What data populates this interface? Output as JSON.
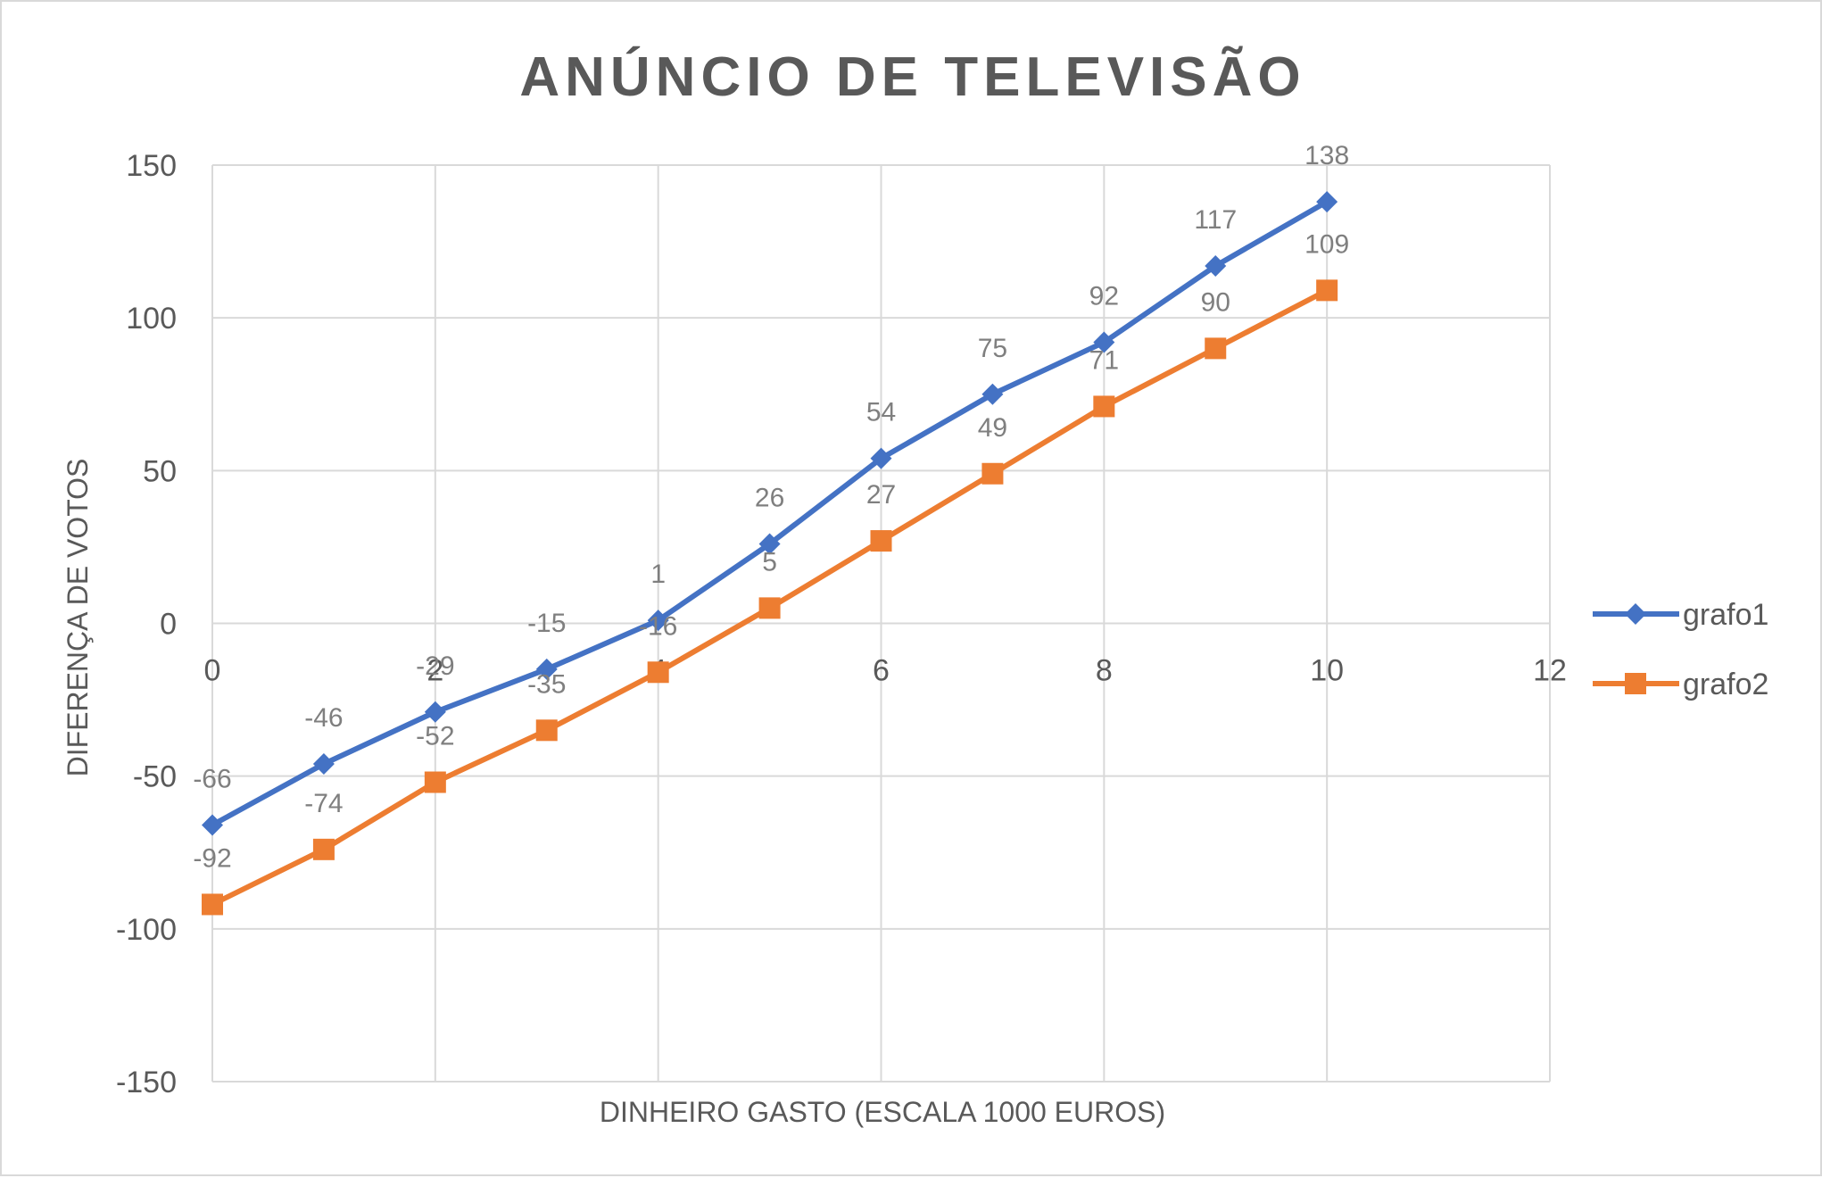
{
  "chart_data": {
    "type": "line",
    "title": "ANÚNCIO DE TELEVISÃO",
    "xlabel": "DINHEIRO GASTO (ESCALA 1000 EUROS)",
    "ylabel": "DIFERENÇA DE VOTOS",
    "xlim": [
      0,
      12
    ],
    "ylim": [
      -150,
      150
    ],
    "x_ticks": [
      "0",
      "2",
      "4",
      "6",
      "8",
      "10",
      "12"
    ],
    "y_ticks": [
      "-150",
      "-100",
      "-50",
      "0",
      "50",
      "100",
      "150"
    ],
    "grid": true,
    "legend_position": "right",
    "x": [
      0,
      1,
      2,
      3,
      4,
      5,
      6,
      7,
      8,
      9,
      10
    ],
    "series": [
      {
        "name": "grafo1",
        "color": "#4472c4",
        "marker": "diamond",
        "values": [
          -66,
          -46,
          -29,
          -15,
          1,
          26,
          54,
          75,
          92,
          117,
          138
        ]
      },
      {
        "name": "grafo2",
        "color": "#ed7d31",
        "marker": "square",
        "values": [
          -92,
          -74,
          -52,
          -35,
          -16,
          5,
          27,
          49,
          71,
          90,
          109
        ]
      }
    ]
  }
}
